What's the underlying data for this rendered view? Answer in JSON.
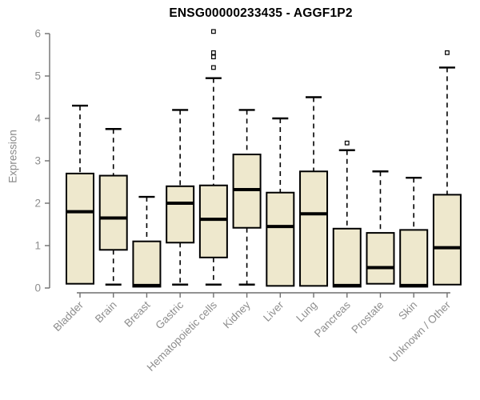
{
  "title": "ENSG00000233435 - AGGF1P2",
  "chart_data": {
    "type": "boxplot",
    "title": "ENSG00000233435 - AGGF1P2",
    "xlabel": "",
    "ylabel": "Expression",
    "ylim": [
      0,
      6
    ],
    "yticks": [
      0,
      1,
      2,
      3,
      4,
      5,
      6
    ],
    "grid": false,
    "legend": "none",
    "categories": [
      "Bladder",
      "Brain",
      "Breast",
      "Gastric",
      "Hematopoietic cells",
      "Kidney",
      "Liver",
      "Lung",
      "Pancreas",
      "Prostate",
      "Skin",
      "Unknown / Other"
    ],
    "series": [
      {
        "name": "Bladder",
        "low": 0.1,
        "q1": 0.1,
        "median": 1.8,
        "q3": 2.7,
        "high": 4.3,
        "outliers": []
      },
      {
        "name": "Brain",
        "low": 0.08,
        "q1": 0.9,
        "median": 1.65,
        "q3": 2.65,
        "high": 3.75,
        "outliers": []
      },
      {
        "name": "Breast",
        "low": 0.03,
        "q1": 0.03,
        "median": 0.06,
        "q3": 1.1,
        "high": 2.15,
        "outliers": []
      },
      {
        "name": "Gastric",
        "low": 0.08,
        "q1": 1.07,
        "median": 2.0,
        "q3": 2.4,
        "high": 4.2,
        "outliers": []
      },
      {
        "name": "Hematopoietic cells",
        "low": 0.08,
        "q1": 0.72,
        "median": 1.62,
        "q3": 2.42,
        "high": 4.95,
        "outliers": [
          5.2,
          5.45,
          5.55,
          6.05
        ]
      },
      {
        "name": "Kidney",
        "low": 0.08,
        "q1": 1.42,
        "median": 2.32,
        "q3": 3.15,
        "high": 4.2,
        "outliers": []
      },
      {
        "name": "Liver",
        "low": 0.05,
        "q1": 0.05,
        "median": 1.45,
        "q3": 2.25,
        "high": 4.0,
        "outliers": []
      },
      {
        "name": "Lung",
        "low": 0.05,
        "q1": 0.05,
        "median": 1.75,
        "q3": 2.75,
        "high": 4.5,
        "outliers": []
      },
      {
        "name": "Pancreas",
        "low": 0.03,
        "q1": 0.03,
        "median": 0.06,
        "q3": 1.4,
        "high": 3.25,
        "outliers": [
          3.42
        ]
      },
      {
        "name": "Prostate",
        "low": 0.1,
        "q1": 0.1,
        "median": 0.48,
        "q3": 1.3,
        "high": 2.75,
        "outliers": []
      },
      {
        "name": "Skin",
        "low": 0.03,
        "q1": 0.03,
        "median": 0.06,
        "q3": 1.37,
        "high": 2.6,
        "outliers": []
      },
      {
        "name": "Unknown / Other",
        "low": 0.08,
        "q1": 0.08,
        "median": 0.95,
        "q3": 2.2,
        "high": 5.2,
        "outliers": [
          5.55
        ]
      }
    ],
    "colors": {
      "box_fill": "#EEE8CD",
      "box_border": "#000000",
      "median": "#000000",
      "whisker": "#000000",
      "outlier_stroke": "#000000",
      "outlier_fill": "#ffffff",
      "axis_line": "#6f6f6f",
      "tick_text": "#8e8e8e",
      "title_text": "#000000",
      "background": "#ffffff"
    }
  }
}
